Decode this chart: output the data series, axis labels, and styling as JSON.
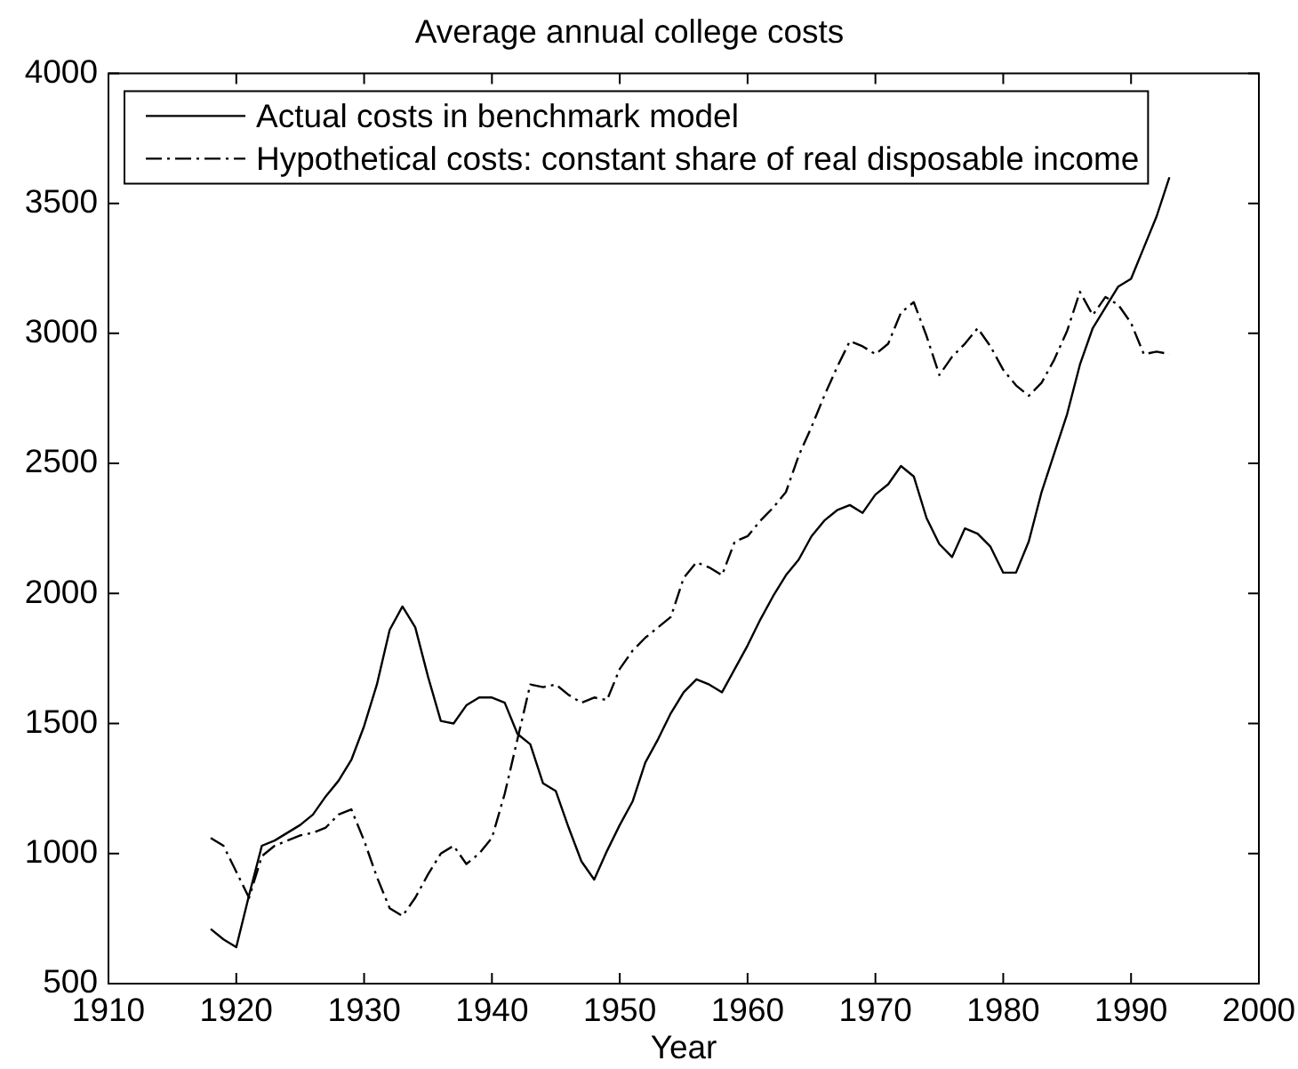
{
  "chart_data": {
    "type": "line",
    "title": "Average annual college costs",
    "xlabel": "Year",
    "x": [
      1918,
      1919,
      1920,
      1921,
      1922,
      1923,
      1924,
      1925,
      1926,
      1927,
      1928,
      1929,
      1930,
      1931,
      1932,
      1933,
      1934,
      1935,
      1936,
      1937,
      1938,
      1939,
      1940,
      1941,
      1942,
      1943,
      1944,
      1945,
      1946,
      1947,
      1948,
      1949,
      1950,
      1951,
      1952,
      1953,
      1954,
      1955,
      1956,
      1957,
      1958,
      1959,
      1960,
      1961,
      1962,
      1963,
      1964,
      1965,
      1966,
      1967,
      1968,
      1969,
      1970,
      1971,
      1972,
      1973,
      1974,
      1975,
      1976,
      1977,
      1978,
      1979,
      1980,
      1981,
      1982,
      1983,
      1984,
      1985,
      1986,
      1987,
      1988,
      1989,
      1990,
      1991,
      1992,
      1993
    ],
    "series": [
      {
        "name": "Actual costs in benchmark model",
        "color": "#000000",
        "line_style": "solid",
        "values": [
          710,
          670,
          640,
          840,
          1030,
          1050,
          1080,
          1110,
          1150,
          1220,
          1280,
          1360,
          1490,
          1650,
          1860,
          1950,
          1870,
          1680,
          1510,
          1500,
          1570,
          1600,
          1600,
          1580,
          1460,
          1420,
          1270,
          1240,
          1100,
          970,
          900,
          1010,
          1110,
          1200,
          1350,
          1440,
          1540,
          1620,
          1670,
          1650,
          1620,
          1710,
          1800,
          1900,
          1990,
          2070,
          2130,
          2220,
          2280,
          2320,
          2340,
          2310,
          2380,
          2420,
          2490,
          2450,
          2290,
          2190,
          2140,
          2250,
          2230,
          2180,
          2080,
          2080,
          2200,
          2390,
          2540,
          2690,
          2880,
          3020,
          3100,
          3180,
          3210,
          3330,
          3450,
          3600
        ]
      },
      {
        "name": "Hypothetical costs: constant share of real disposable income",
        "color": "#000000",
        "line_style": "dashdot",
        "values": [
          1060,
          1030,
          930,
          830,
          990,
          1030,
          1050,
          1070,
          1080,
          1100,
          1150,
          1170,
          1050,
          910,
          790,
          760,
          830,
          920,
          1000,
          1030,
          960,
          1000,
          1060,
          1230,
          1440,
          1650,
          1640,
          1650,
          1610,
          1580,
          1600,
          1590,
          1710,
          1780,
          1830,
          1870,
          1910,
          2060,
          2120,
          2100,
          2070,
          2200,
          2220,
          2280,
          2330,
          2390,
          2530,
          2640,
          2760,
          2870,
          2970,
          2950,
          2920,
          2960,
          3080,
          3120,
          2990,
          2840,
          2910,
          2960,
          3020,
          2950,
          2860,
          2800,
          2760,
          2810,
          2900,
          3010,
          3160,
          3070,
          3140,
          3110,
          3040,
          2920,
          2930,
          2920
        ]
      }
    ],
    "xlim": [
      1910,
      2000
    ],
    "ylim": [
      500,
      4000
    ],
    "xticks": [
      1910,
      1920,
      1930,
      1940,
      1950,
      1960,
      1970,
      1980,
      1990,
      2000
    ],
    "yticks": [
      500,
      1000,
      1500,
      2000,
      2500,
      3000,
      3500,
      4000
    ],
    "legend": "top left"
  }
}
